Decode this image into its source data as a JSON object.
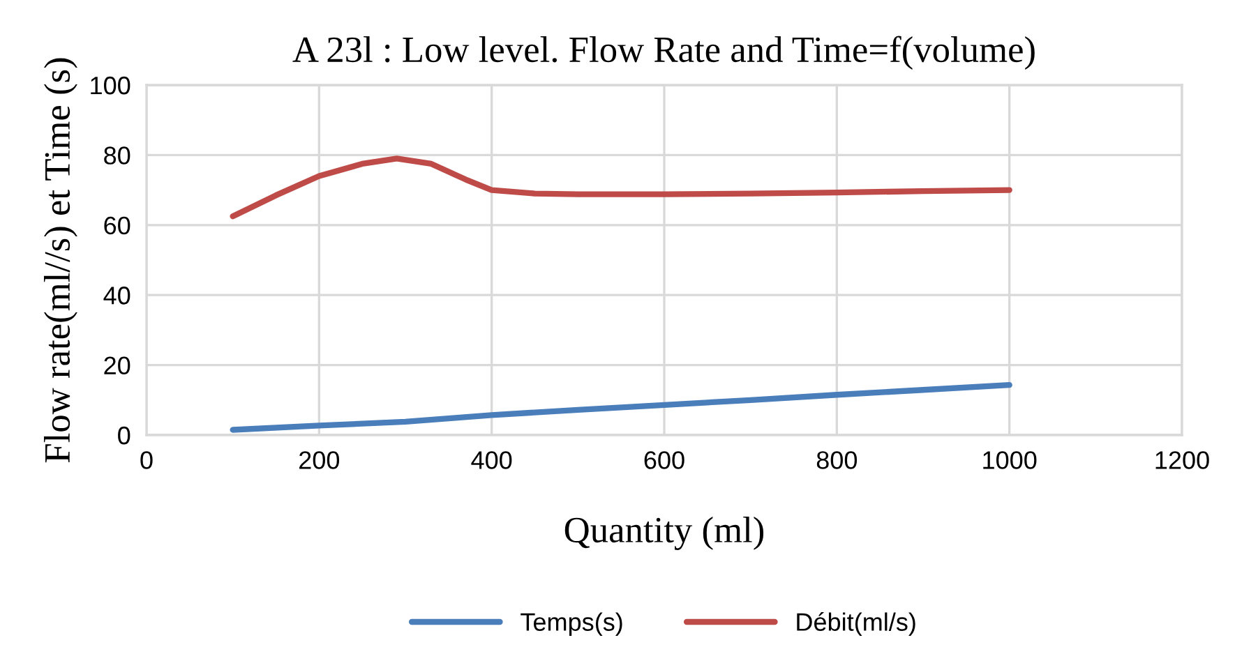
{
  "chart_data": {
    "type": "line",
    "title": "A 23l : Low level. Flow Rate and Time=f(volume)",
    "xlabel": "Quantity (ml)",
    "ylabel": "Flow rate(ml//s) et Time (s)",
    "xlim": [
      0,
      1200
    ],
    "xticks": [
      0,
      200,
      400,
      600,
      800,
      1000,
      1200
    ],
    "ylim": [
      0,
      100
    ],
    "yticks": [
      0,
      20,
      40,
      60,
      80,
      100
    ],
    "grid": true,
    "legend": "bottom",
    "marker": "none",
    "line_style": "solid",
    "series": [
      {
        "name": "Temps(s)",
        "color": "#4a7ebb",
        "x": [
          100,
          200,
          300,
          400,
          500,
          600,
          700,
          800,
          900,
          1000
        ],
        "values": [
          1.5,
          2.7,
          3.8,
          5.7,
          7.2,
          8.6,
          10,
          11.5,
          12.9,
          14.3
        ]
      },
      {
        "name": "Débit(ml/s)",
        "color": "#be4b48",
        "x": [
          100,
          150,
          200,
          250,
          290,
          330,
          370,
          400,
          450,
          500,
          600,
          700,
          800,
          900,
          1000
        ],
        "values": [
          62.5,
          68.5,
          74,
          77.5,
          79,
          77.5,
          73,
          70,
          69,
          68.8,
          68.8,
          69,
          69.3,
          69.7,
          70
        ]
      }
    ]
  }
}
